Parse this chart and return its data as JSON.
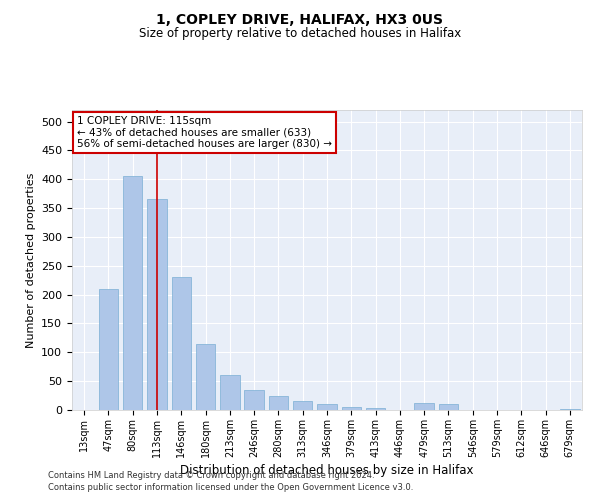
{
  "title1": "1, COPLEY DRIVE, HALIFAX, HX3 0US",
  "title2": "Size of property relative to detached houses in Halifax",
  "xlabel": "Distribution of detached houses by size in Halifax",
  "ylabel": "Number of detached properties",
  "categories": [
    "13sqm",
    "47sqm",
    "80sqm",
    "113sqm",
    "146sqm",
    "180sqm",
    "213sqm",
    "246sqm",
    "280sqm",
    "313sqm",
    "346sqm",
    "379sqm",
    "413sqm",
    "446sqm",
    "479sqm",
    "513sqm",
    "546sqm",
    "579sqm",
    "612sqm",
    "646sqm",
    "679sqm"
  ],
  "values": [
    0,
    210,
    405,
    365,
    230,
    115,
    60,
    35,
    25,
    15,
    10,
    5,
    3,
    0,
    12,
    10,
    0,
    0,
    0,
    0,
    2
  ],
  "bar_color": "#aec6e8",
  "bar_edge_color": "#7aafd4",
  "bg_color": "#e8eef8",
  "vline_x_index": 3,
  "vline_color": "#cc0000",
  "annotation_text": "1 COPLEY DRIVE: 115sqm\n← 43% of detached houses are smaller (633)\n56% of semi-detached houses are larger (830) →",
  "annotation_box_color": "#ffffff",
  "annotation_box_edge": "#cc0000",
  "ylim": [
    0,
    520
  ],
  "yticks": [
    0,
    50,
    100,
    150,
    200,
    250,
    300,
    350,
    400,
    450,
    500
  ],
  "footer1": "Contains HM Land Registry data © Crown copyright and database right 2024.",
  "footer2": "Contains public sector information licensed under the Open Government Licence v3.0."
}
